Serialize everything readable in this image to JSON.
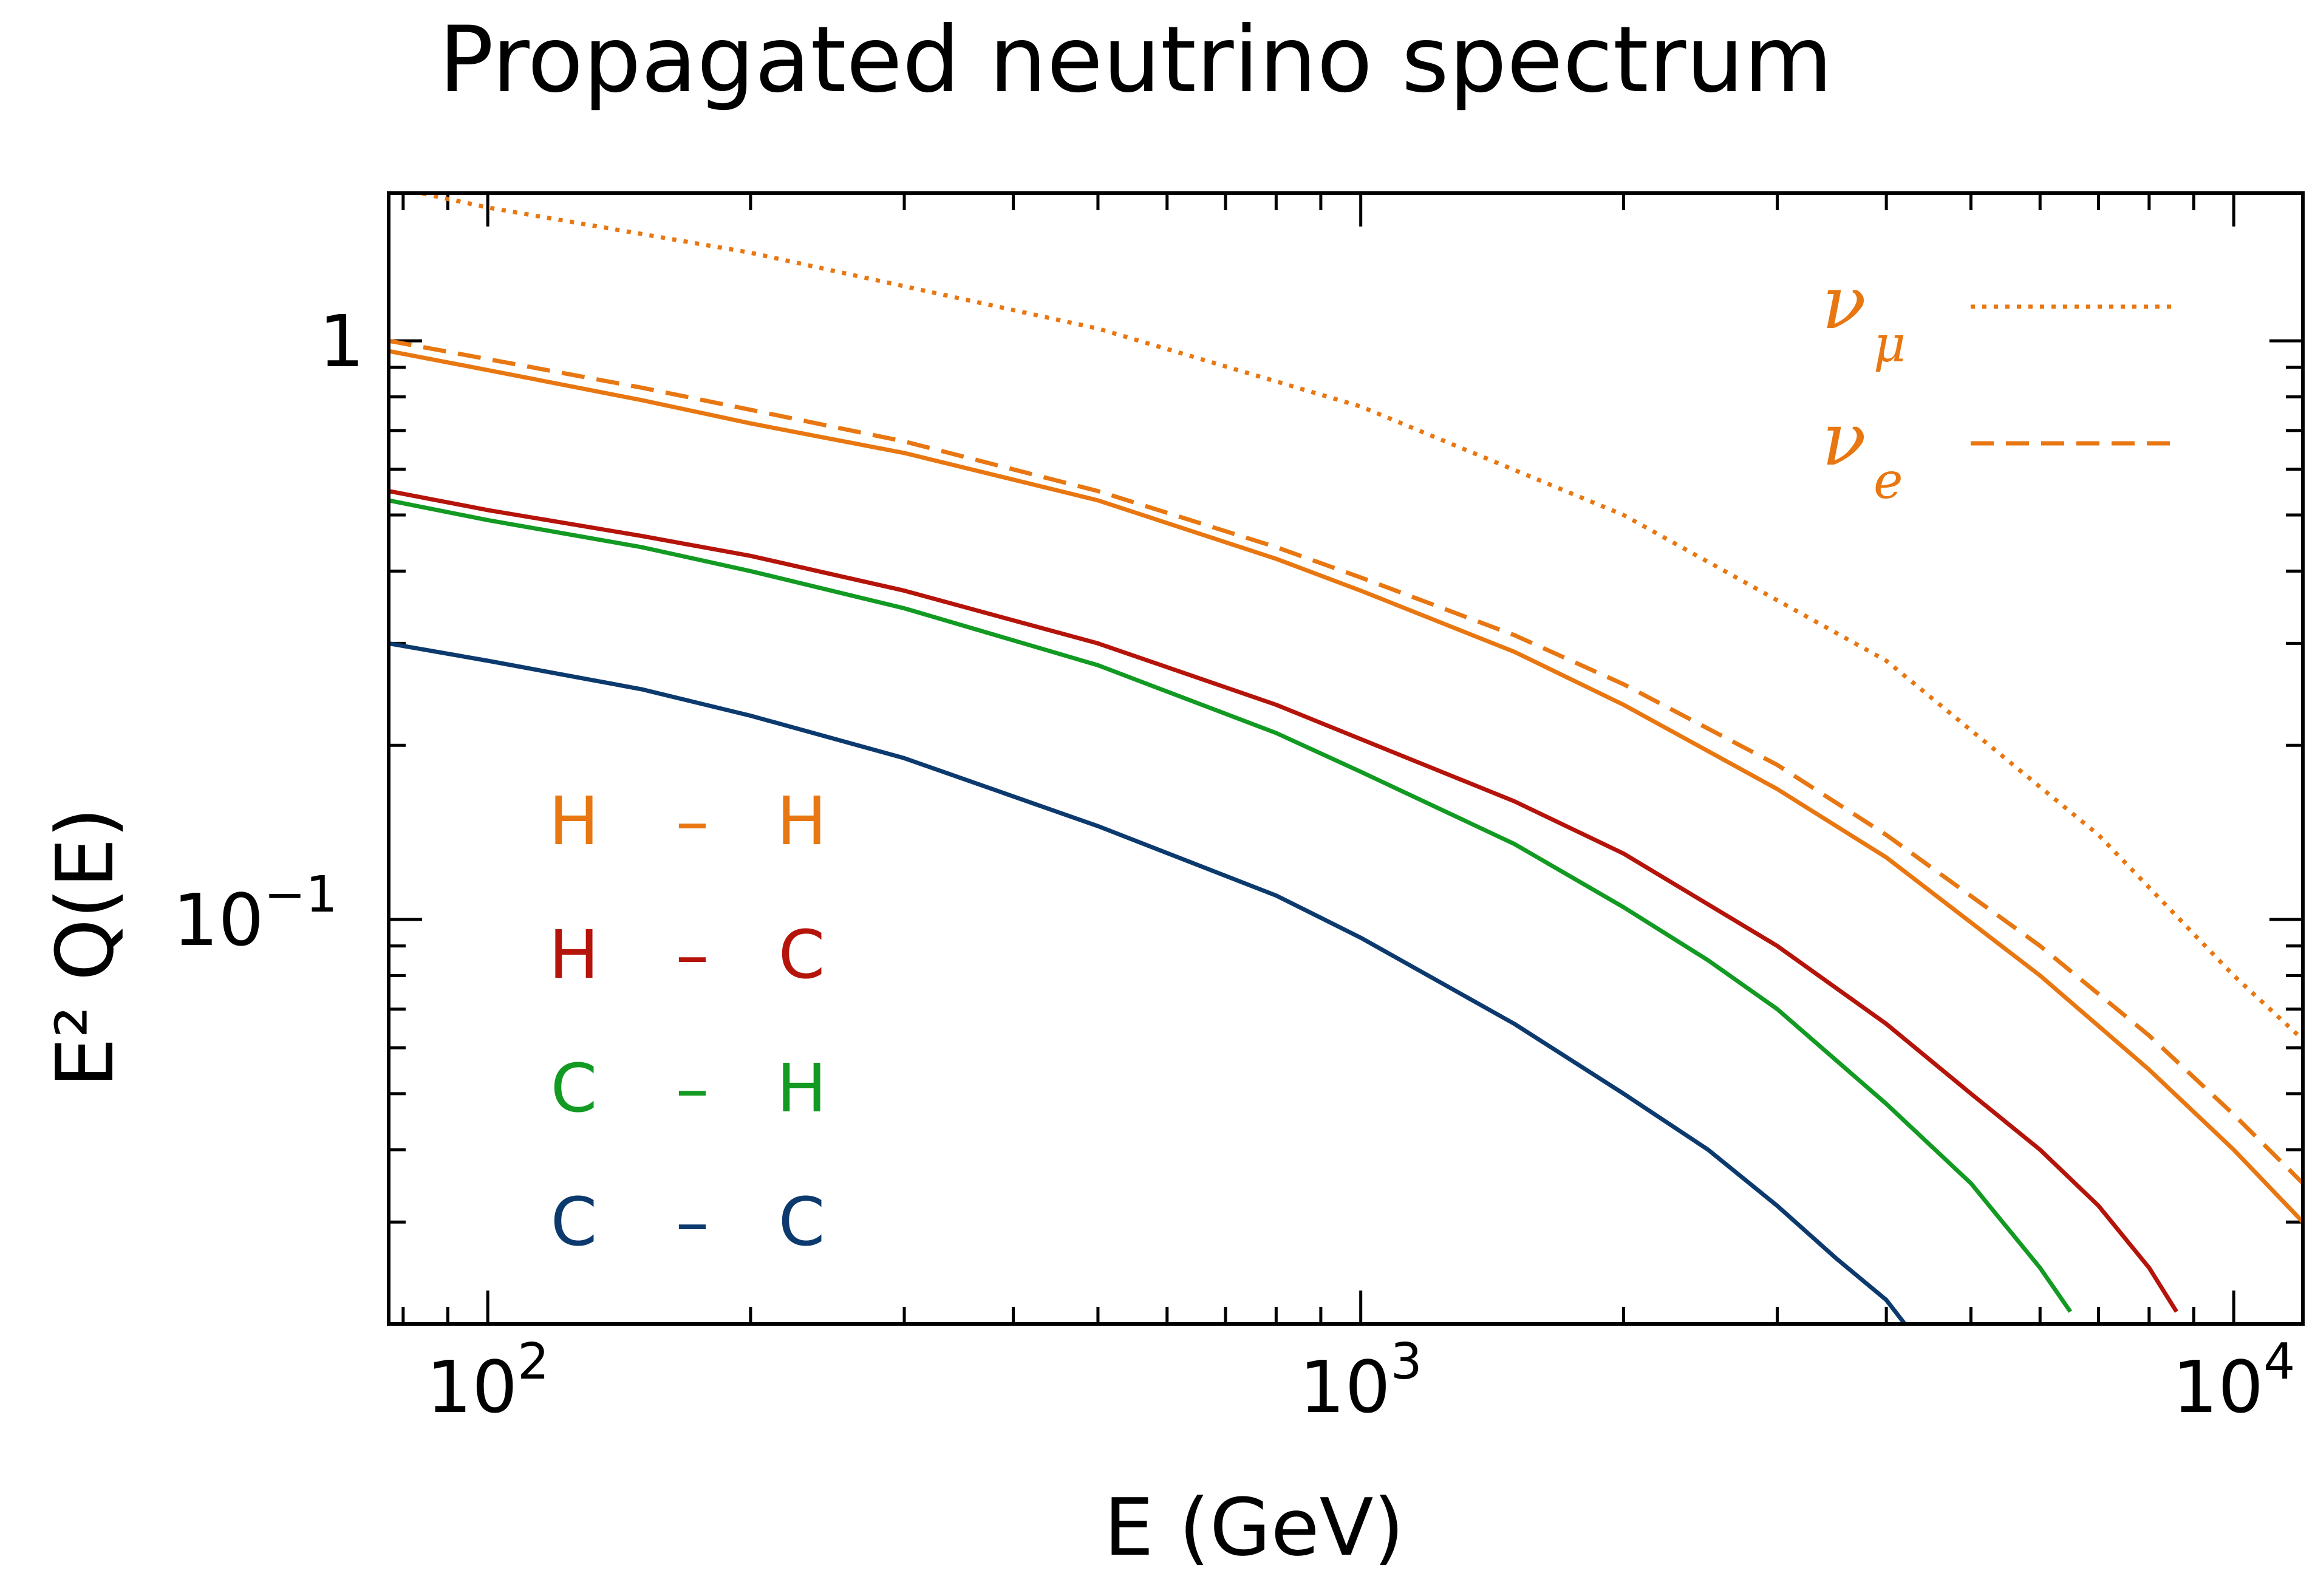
{
  "chart_data": {
    "type": "line",
    "title": "Propagated neutrino spectrum",
    "xlabel": "E  (GeV)",
    "ylabel": "E² Q(E)",
    "xscale": "log",
    "yscale": "log",
    "xlim": [
      77,
      12000
    ],
    "ylim": [
      0.02,
      1.8
    ],
    "xticks": [
      {
        "base": "10",
        "exp": "2",
        "value": 100
      },
      {
        "base": "10",
        "exp": "3",
        "value": 1000
      },
      {
        "base": "10",
        "exp": "4",
        "value": 10000
      }
    ],
    "yticks": [
      {
        "base": "1",
        "exp": "",
        "value": 1
      },
      {
        "base": "10",
        "exp": "−1",
        "value": 0.1
      }
    ],
    "legend_models": [
      {
        "left": "H",
        "dash": "–",
        "right": "H",
        "color": "#e87711"
      },
      {
        "left": "H",
        "dash": "–",
        "right": "C",
        "color": "#b5140a"
      },
      {
        "left": "C",
        "dash": "–",
        "right": "H",
        "color": "#129a22"
      },
      {
        "left": "C",
        "dash": "–",
        "right": "C",
        "color": "#0c3a6e"
      }
    ],
    "legend_flavors": [
      {
        "symbol": "ν",
        "sub": "μ",
        "style": "dotted",
        "color": "#e87711"
      },
      {
        "symbol": "ν",
        "sub": "e",
        "style": "dashed",
        "color": "#e87711"
      }
    ],
    "series": [
      {
        "name": "H - H ν_μ",
        "style": "dotted",
        "color": "#e87711",
        "x": [
          77,
          100,
          200,
          500,
          1000,
          2000,
          4000,
          7000,
          10000,
          12000
        ],
        "y": [
          1.85,
          1.7,
          1.42,
          1.05,
          0.77,
          0.5,
          0.28,
          0.14,
          0.08,
          0.062
        ]
      },
      {
        "name": "H - H ν_e",
        "style": "dashed",
        "color": "#e87711",
        "x": [
          77,
          100,
          150,
          200,
          300,
          500,
          800,
          1000,
          1500,
          2000,
          3000,
          4000,
          6000,
          8000,
          10000,
          12000
        ],
        "y": [
          1.0,
          0.93,
          0.83,
          0.76,
          0.67,
          0.55,
          0.44,
          0.39,
          0.31,
          0.255,
          0.185,
          0.14,
          0.09,
          0.063,
          0.046,
          0.035
        ]
      },
      {
        "name": "H - H ν_μ (propagated)",
        "style": "solid",
        "color": "#e87711",
        "x": [
          77,
          100,
          150,
          200,
          300,
          500,
          800,
          1000,
          1500,
          2000,
          3000,
          4000,
          6000,
          8000,
          10000,
          12000
        ],
        "y": [
          0.96,
          0.89,
          0.79,
          0.72,
          0.64,
          0.53,
          0.42,
          0.37,
          0.29,
          0.235,
          0.168,
          0.128,
          0.08,
          0.055,
          0.04,
          0.03
        ]
      },
      {
        "name": "H - C",
        "style": "solid",
        "color": "#b5140a",
        "x": [
          77,
          100,
          150,
          200,
          300,
          500,
          800,
          1000,
          1500,
          2000,
          3000,
          4000,
          5000,
          6000,
          7000,
          8000,
          8600
        ],
        "y": [
          0.55,
          0.51,
          0.46,
          0.425,
          0.37,
          0.3,
          0.235,
          0.205,
          0.16,
          0.13,
          0.09,
          0.066,
          0.05,
          0.04,
          0.032,
          0.025,
          0.021
        ]
      },
      {
        "name": "C - H",
        "style": "solid",
        "color": "#129a22",
        "x": [
          77,
          100,
          150,
          200,
          300,
          500,
          800,
          1000,
          1500,
          2000,
          2500,
          3000,
          4000,
          5000,
          6000,
          6500
        ],
        "y": [
          0.53,
          0.49,
          0.44,
          0.4,
          0.345,
          0.275,
          0.21,
          0.18,
          0.135,
          0.105,
          0.085,
          0.07,
          0.048,
          0.035,
          0.025,
          0.021
        ]
      },
      {
        "name": "C - C",
        "style": "solid",
        "color": "#0c3a6e",
        "x": [
          77,
          100,
          150,
          200,
          300,
          500,
          800,
          1000,
          1500,
          2000,
          2500,
          3000,
          3500,
          4000,
          4200
        ],
        "y": [
          0.3,
          0.28,
          0.25,
          0.225,
          0.19,
          0.145,
          0.11,
          0.093,
          0.066,
          0.05,
          0.04,
          0.032,
          0.026,
          0.022,
          0.02
        ]
      }
    ]
  }
}
